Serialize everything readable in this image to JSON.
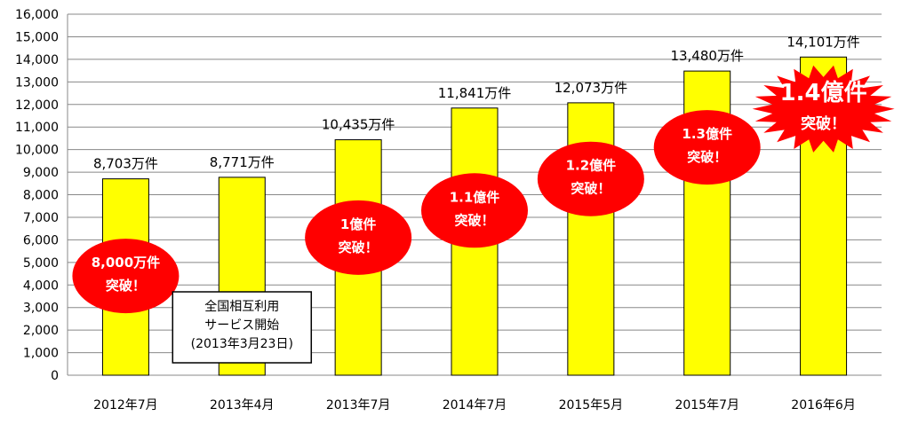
{
  "chart_data": {
    "type": "bar",
    "categories": [
      "2012年7月",
      "2013年4月",
      "2013年7月",
      "2014年7月",
      "2015年5月",
      "2015年7月",
      "2016年6月"
    ],
    "values": [
      8703,
      8771,
      10435,
      11841,
      12073,
      13480,
      14101
    ],
    "data_labels": [
      "8,703万件",
      "8,771万件",
      "10,435万件",
      "11,841万件",
      "12,073万件",
      "13,480万件",
      "14,101万件"
    ],
    "ylim": [
      0,
      16000
    ],
    "yticks": [
      0,
      1000,
      2000,
      3000,
      4000,
      5000,
      6000,
      7000,
      8000,
      9000,
      10000,
      11000,
      12000,
      13000,
      14000,
      15000,
      16000
    ],
    "ytick_labels": [
      "0",
      "1,000",
      "2,000",
      "3,000",
      "4,000",
      "5,000",
      "6,000",
      "7,000",
      "8,000",
      "9,000",
      "10,000",
      "11,000",
      "12,000",
      "13,000",
      "14,000",
      "15,000",
      "16,000"
    ],
    "grid": true,
    "bar_color": "#ffff00",
    "badge_color": "#ff0000",
    "badges": [
      {
        "line1": "8,000万件",
        "line2": "突破！",
        "category_index": 0,
        "level": 4400,
        "shape": "ellipse"
      },
      {
        "line1": "1億件",
        "line2": "突破！",
        "category_index": 2,
        "level": 6100,
        "shape": "ellipse"
      },
      {
        "line1": "1.1億件",
        "line2": "突破！",
        "category_index": 3,
        "level": 7300,
        "shape": "ellipse"
      },
      {
        "line1": "1.2億件",
        "line2": "突破！",
        "category_index": 4,
        "level": 8700,
        "shape": "ellipse"
      },
      {
        "line1": "1.3億件",
        "line2": "突破！",
        "category_index": 5,
        "level": 10100,
        "shape": "ellipse"
      },
      {
        "line1": "1.4億件",
        "line2": "突破！",
        "category_index": 6,
        "level": 11800,
        "shape": "starburst"
      }
    ],
    "annotation": {
      "lines": [
        "全国相互利用",
        "サービス開始",
        "(2013年3月23日)"
      ]
    }
  }
}
